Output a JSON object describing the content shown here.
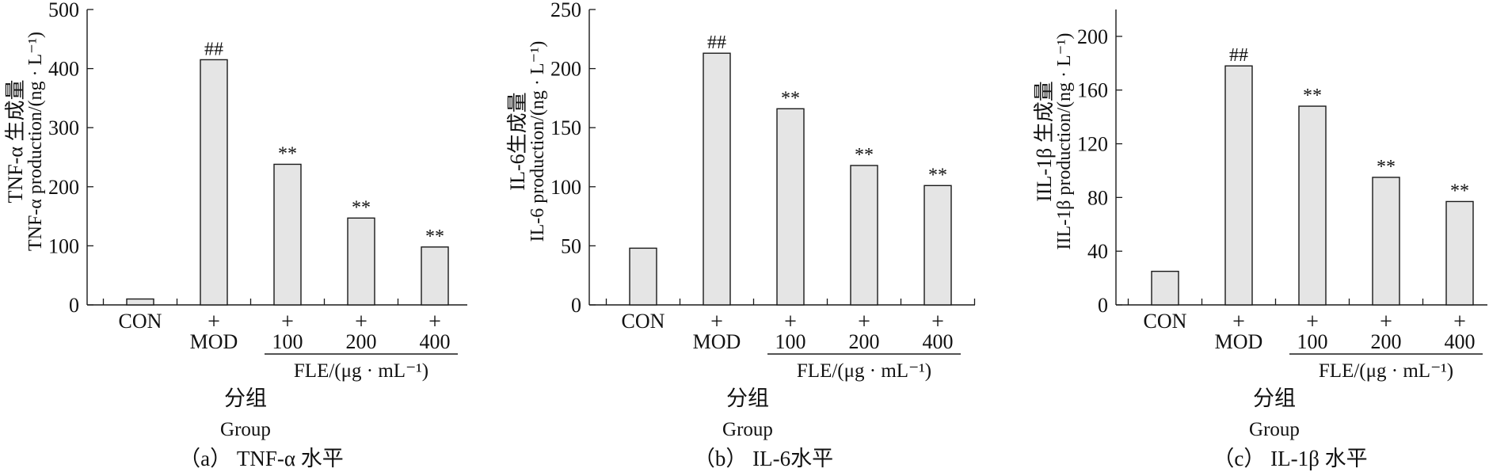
{
  "chart_data": [
    {
      "type": "bar",
      "panel": "(a)",
      "caption": "（a） TNF-α 水平",
      "ylabel_cn": "TNF-α 生成量",
      "ylabel_en": "TNF-α production/(ng · L⁻¹)",
      "ylim": [
        0,
        500
      ],
      "yticks": [
        0,
        100,
        200,
        300,
        400,
        500
      ],
      "categories": [
        "CON",
        "MOD",
        "100",
        "200",
        "400"
      ],
      "plus_marks": [
        "",
        "+",
        "+",
        "+",
        "+"
      ],
      "values": [
        10,
        415,
        238,
        147,
        98
      ],
      "annotations": [
        "",
        "##",
        "**",
        "**",
        "**"
      ],
      "group_label": "FLE/(μg · mL⁻¹)",
      "xlabel_cn": "分组",
      "xlabel_en": "Group"
    },
    {
      "type": "bar",
      "panel": "(b)",
      "caption": "（b） IL-6水平",
      "ylabel_cn": "IL-6生成量",
      "ylabel_en": "IL-6 production/(ng · L⁻¹)",
      "ylim": [
        0,
        250
      ],
      "yticks": [
        0,
        50,
        100,
        150,
        200,
        250
      ],
      "categories": [
        "CON",
        "MOD",
        "100",
        "200",
        "400"
      ],
      "plus_marks": [
        "",
        "+",
        "+",
        "+",
        "+"
      ],
      "values": [
        48,
        213,
        166,
        118,
        101
      ],
      "annotations": [
        "",
        "##",
        "**",
        "**",
        "**"
      ],
      "group_label": "FLE/(μg · mL⁻¹)",
      "xlabel_cn": "分组",
      "xlabel_en": "Group"
    },
    {
      "type": "bar",
      "panel": "(c)",
      "caption": "（c） IL-1β 水平",
      "ylabel_cn": "IIL-1β 生成量",
      "ylabel_en": "IIL-1β production/(ng · L⁻¹)",
      "ylim": [
        0,
        220
      ],
      "yticks": [
        0,
        40,
        80,
        120,
        160,
        200
      ],
      "categories": [
        "CON",
        "MOD",
        "100",
        "200",
        "400"
      ],
      "plus_marks": [
        "",
        "+",
        "+",
        "+",
        "+"
      ],
      "values": [
        25,
        178,
        148,
        95,
        77
      ],
      "annotations": [
        "",
        "##",
        "**",
        "**",
        "**"
      ],
      "group_label": "FLE/(μg · mL⁻¹)",
      "xlabel_cn": "分组",
      "xlabel_en": "Group"
    }
  ],
  "style": {
    "bar_fill": "#e5e5e5",
    "stroke": "#1a1a1a"
  }
}
